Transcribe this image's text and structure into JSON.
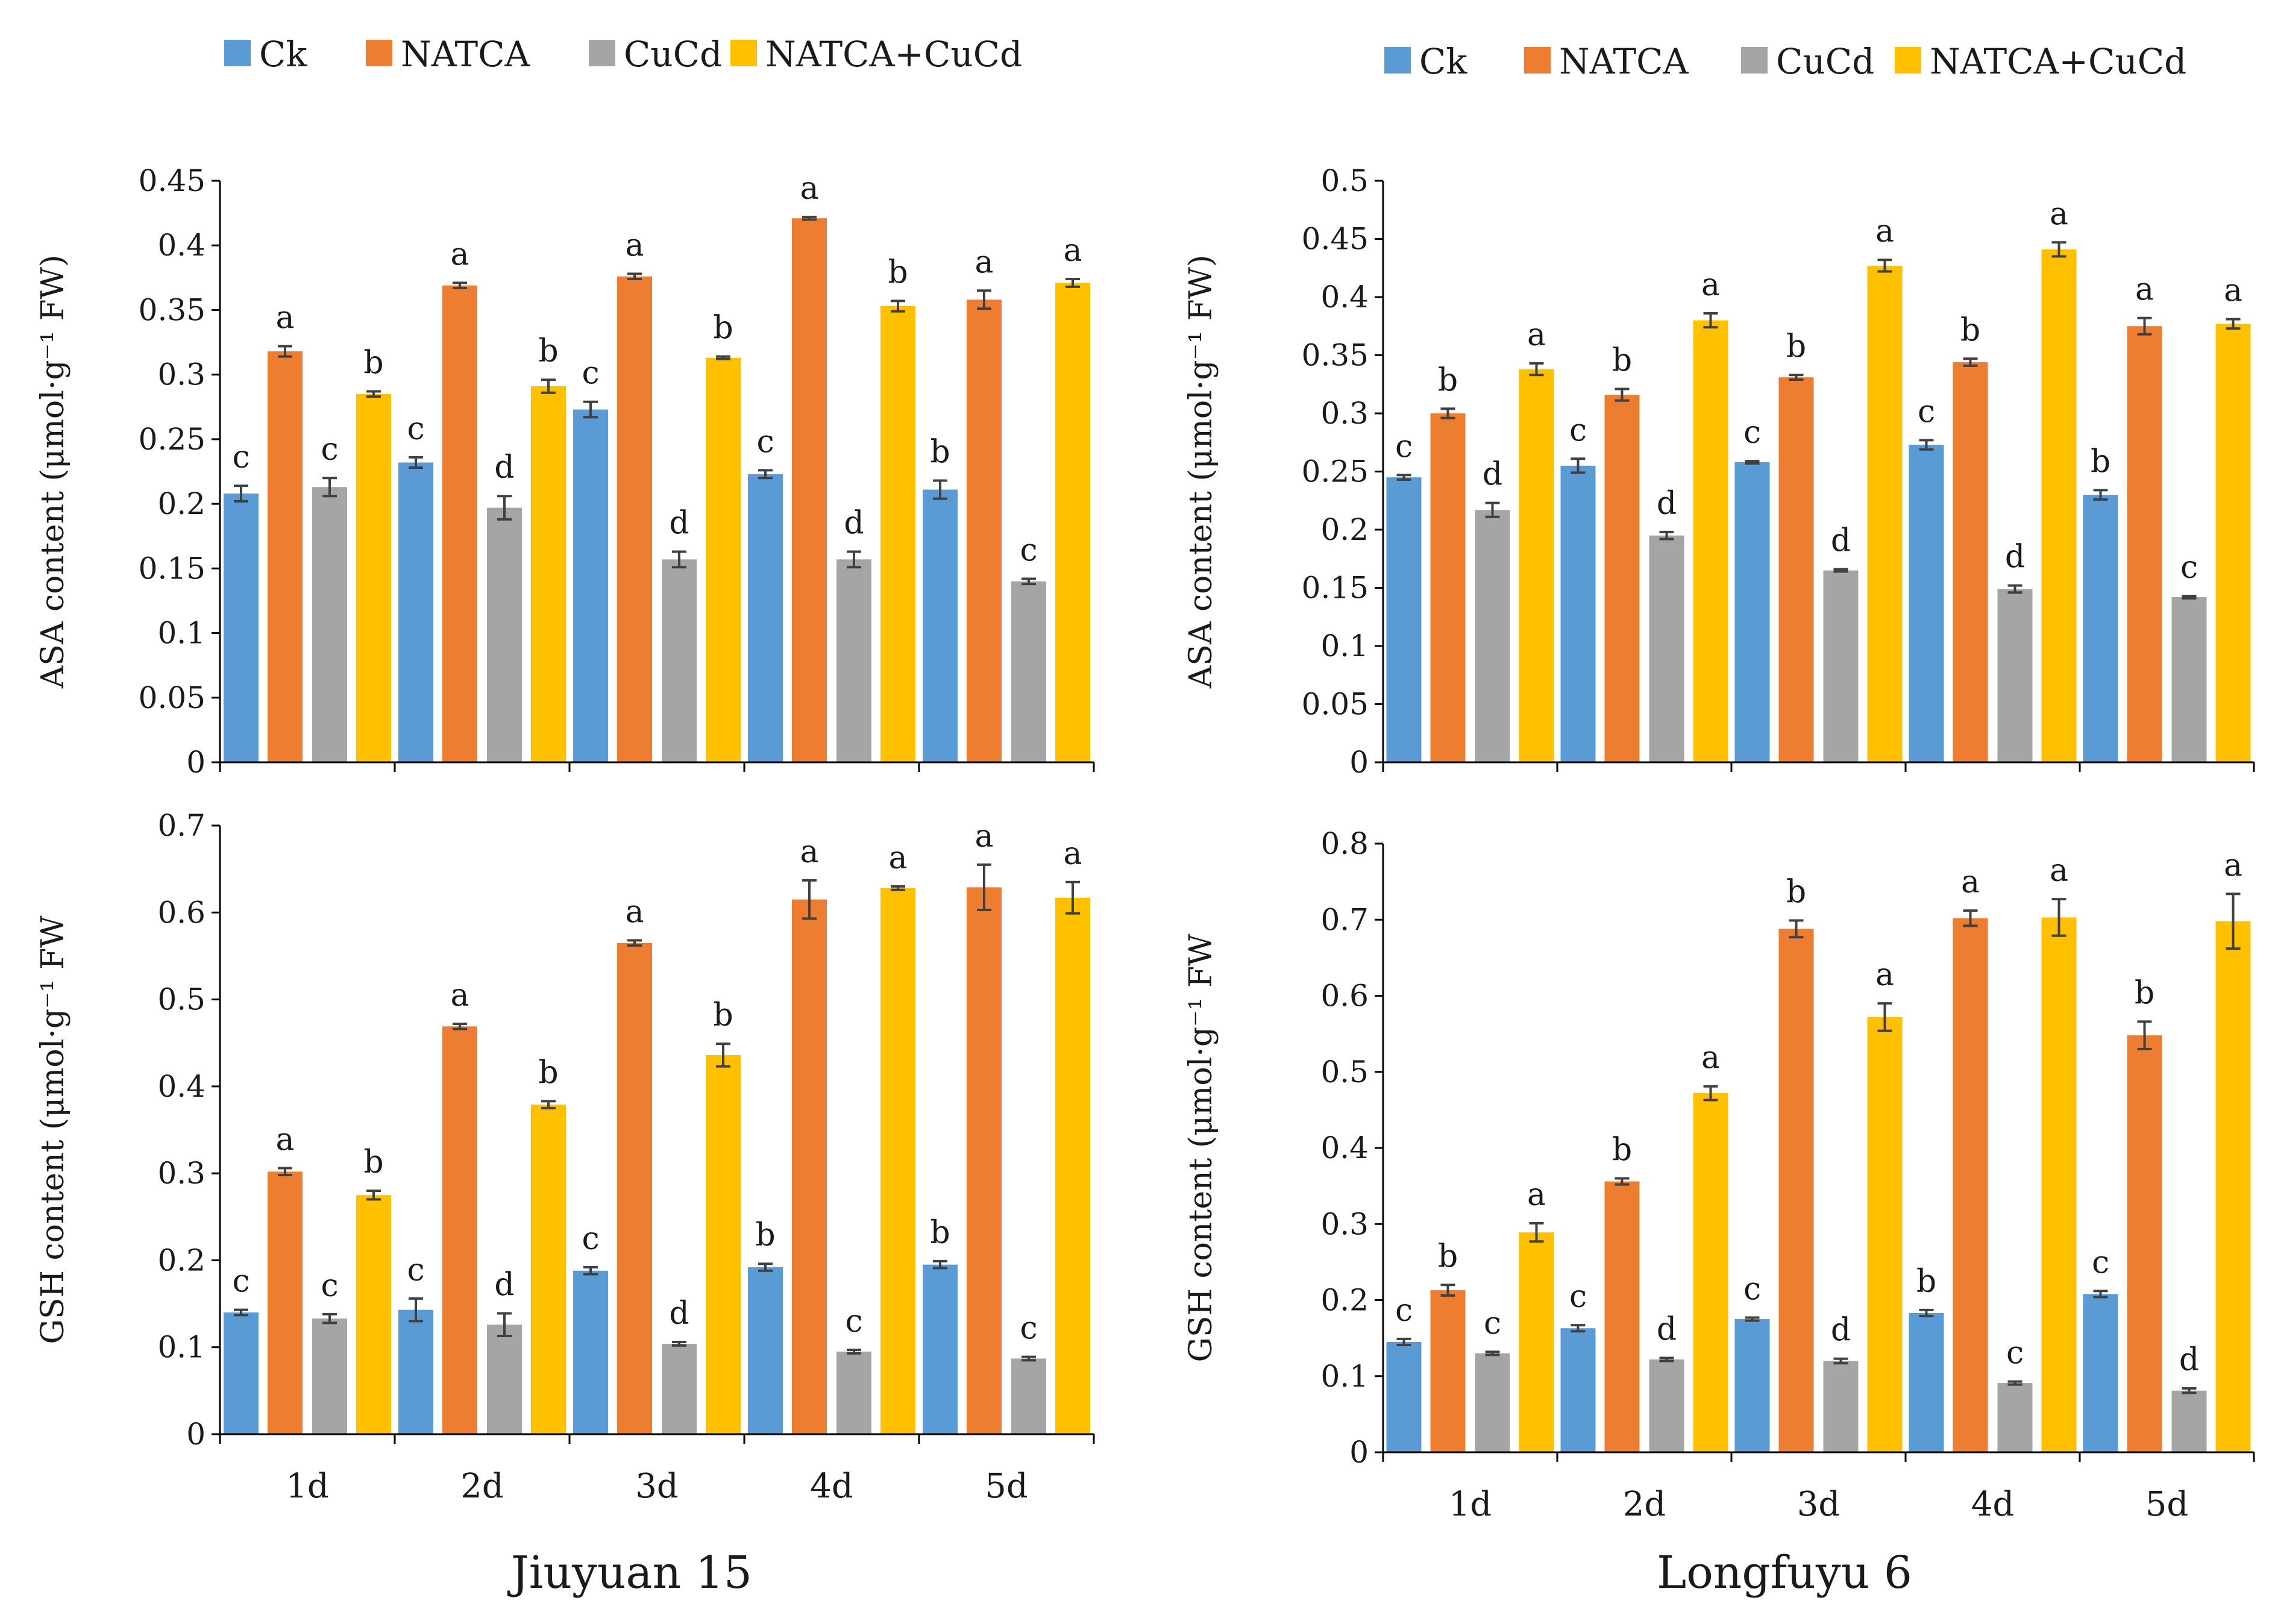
{
  "colors": {
    "Ck": "#5b9bd5",
    "NATCA": "#ed7d31",
    "CuCd": "#a5a5a5",
    "NATCA+CuCd": "#ffc000",
    "axis": "#000000",
    "error": "#404040"
  },
  "legends": [
    [
      "Ck",
      "NATCA",
      "CuCd",
      "NATCA+CuCd"
    ],
    [
      "Ck",
      "NATCA",
      "CuCd",
      "NATCA+CuCd"
    ]
  ],
  "cultivars": [
    "Jiuyuan 15",
    "Longfuyu 6"
  ],
  "chart_data": [
    {
      "type": "bar",
      "cultivar": "Jiuyuan 15",
      "ylabel": "ASA content (μmol·g⁻¹ FW)",
      "ylim": [
        0,
        0.45
      ],
      "yticks": [
        "0",
        "0.05",
        "0.1",
        "0.15",
        "0.2",
        "0.25",
        "0.3",
        "0.35",
        "0.4",
        "0.45"
      ],
      "categories": [
        "1d",
        "2d",
        "3d",
        "4d",
        "5d"
      ],
      "show_xlabels": false,
      "series": [
        {
          "name": "Ck",
          "values": [
            0.208,
            0.232,
            0.273,
            0.223,
            0.211
          ],
          "errors": [
            0.006,
            0.004,
            0.006,
            0.003,
            0.007
          ],
          "letters": [
            "c",
            "c",
            "c",
            "c",
            "b"
          ]
        },
        {
          "name": "NATCA",
          "values": [
            0.318,
            0.369,
            0.376,
            0.421,
            0.358
          ],
          "errors": [
            0.004,
            0.002,
            0.002,
            0.001,
            0.007
          ],
          "letters": [
            "a",
            "a",
            "a",
            "a",
            "a"
          ]
        },
        {
          "name": "CuCd",
          "values": [
            0.213,
            0.197,
            0.157,
            0.157,
            0.14
          ],
          "errors": [
            0.007,
            0.009,
            0.006,
            0.006,
            0.002
          ],
          "letters": [
            "c",
            "d",
            "d",
            "d",
            "c"
          ]
        },
        {
          "name": "NATCA+CuCd",
          "values": [
            0.285,
            0.291,
            0.313,
            0.353,
            0.371
          ],
          "errors": [
            0.002,
            0.005,
            0.001,
            0.004,
            0.003
          ],
          "letters": [
            "b",
            "b",
            "b",
            "b",
            "a"
          ]
        }
      ]
    },
    {
      "type": "bar",
      "cultivar": "Longfuyu 6",
      "ylabel": "ASA content (μmol·g⁻¹ FW)",
      "ylim": [
        0,
        0.5
      ],
      "yticks": [
        "0",
        "0.05",
        "0.1",
        "0.15",
        "0.2",
        "0.25",
        "0.3",
        "0.35",
        "0.4",
        "0.45",
        "0.5"
      ],
      "categories": [
        "1d",
        "2d",
        "3d",
        "4d",
        "5d"
      ],
      "show_xlabels": false,
      "series": [
        {
          "name": "Ck",
          "values": [
            0.245,
            0.255,
            0.258,
            0.273,
            0.23
          ],
          "errors": [
            0.002,
            0.006,
            0.001,
            0.004,
            0.004
          ],
          "letters": [
            "c",
            "c",
            "c",
            "c",
            "b"
          ]
        },
        {
          "name": "NATCA",
          "values": [
            0.3,
            0.316,
            0.331,
            0.344,
            0.375
          ],
          "errors": [
            0.004,
            0.005,
            0.002,
            0.003,
            0.007
          ],
          "letters": [
            "b",
            "b",
            "b",
            "b",
            "a"
          ]
        },
        {
          "name": "CuCd",
          "values": [
            0.217,
            0.195,
            0.165,
            0.149,
            0.142
          ],
          "errors": [
            0.006,
            0.003,
            0.001,
            0.003,
            0.001
          ],
          "letters": [
            "d",
            "d",
            "d",
            "d",
            "c"
          ]
        },
        {
          "name": "NATCA+CuCd",
          "values": [
            0.338,
            0.38,
            0.427,
            0.441,
            0.377
          ],
          "errors": [
            0.005,
            0.006,
            0.005,
            0.006,
            0.004
          ],
          "letters": [
            "a",
            "a",
            "a",
            "a",
            "a"
          ]
        }
      ]
    },
    {
      "type": "bar",
      "cultivar": "Jiuyuan 15",
      "ylabel": "GSH content (μmol·g⁻¹ FW",
      "ylim": [
        0,
        0.7
      ],
      "yticks": [
        "0",
        "0.1",
        "0.2",
        "0.3",
        "0.4",
        "0.5",
        "0.6",
        "0.7"
      ],
      "categories": [
        "1d",
        "2d",
        "3d",
        "4d",
        "5d"
      ],
      "show_xlabels": true,
      "series": [
        {
          "name": "Ck",
          "values": [
            0.14,
            0.143,
            0.188,
            0.192,
            0.195
          ],
          "errors": [
            0.003,
            0.013,
            0.004,
            0.004,
            0.004
          ],
          "letters": [
            "c",
            "c",
            "c",
            "b",
            "b"
          ]
        },
        {
          "name": "NATCA",
          "values": [
            0.302,
            0.469,
            0.565,
            0.615,
            0.629
          ],
          "errors": [
            0.004,
            0.003,
            0.003,
            0.022,
            0.026
          ],
          "letters": [
            "a",
            "a",
            "a",
            "a",
            "a"
          ]
        },
        {
          "name": "CuCd",
          "values": [
            0.133,
            0.126,
            0.104,
            0.095,
            0.087
          ],
          "errors": [
            0.005,
            0.013,
            0.002,
            0.002,
            0.002
          ],
          "letters": [
            "c",
            "d",
            "d",
            "c",
            "c"
          ]
        },
        {
          "name": "NATCA+CuCd",
          "values": [
            0.275,
            0.379,
            0.436,
            0.628,
            0.617
          ],
          "errors": [
            0.005,
            0.004,
            0.013,
            0.002,
            0.018
          ],
          "letters": [
            "b",
            "b",
            "b",
            "a",
            "a"
          ]
        }
      ]
    },
    {
      "type": "bar",
      "cultivar": "Longfuyu 6",
      "ylabel": "GSH content (μmol·g⁻¹ FW",
      "ylim": [
        0,
        0.8
      ],
      "yticks": [
        "0",
        "0.1",
        "0.2",
        "0.3",
        "0.4",
        "0.5",
        "0.6",
        "0.7",
        "0.8"
      ],
      "categories": [
        "1d",
        "2d",
        "3d",
        "4d",
        "5d"
      ],
      "show_xlabels": true,
      "series": [
        {
          "name": "Ck",
          "values": [
            0.145,
            0.163,
            0.175,
            0.183,
            0.208
          ],
          "errors": [
            0.004,
            0.004,
            0.002,
            0.004,
            0.004
          ],
          "letters": [
            "c",
            "c",
            "c",
            "b",
            "c"
          ]
        },
        {
          "name": "NATCA",
          "values": [
            0.213,
            0.356,
            0.688,
            0.702,
            0.548
          ],
          "errors": [
            0.007,
            0.004,
            0.011,
            0.01,
            0.018
          ],
          "letters": [
            "b",
            "b",
            "b",
            "a",
            "b"
          ]
        },
        {
          "name": "CuCd",
          "values": [
            0.13,
            0.122,
            0.12,
            0.091,
            0.081
          ],
          "errors": [
            0.002,
            0.002,
            0.003,
            0.002,
            0.003
          ],
          "letters": [
            "c",
            "d",
            "d",
            "c",
            "d"
          ]
        },
        {
          "name": "NATCA+CuCd",
          "values": [
            0.289,
            0.472,
            0.572,
            0.703,
            0.698
          ],
          "errors": [
            0.012,
            0.009,
            0.018,
            0.024,
            0.036
          ],
          "letters": [
            "a",
            "a",
            "a",
            "a",
            "a"
          ]
        }
      ]
    }
  ]
}
